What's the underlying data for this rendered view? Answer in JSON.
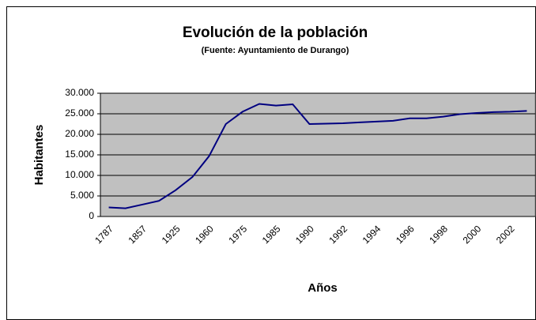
{
  "chart_data": {
    "type": "line",
    "title": "Evolución de la población",
    "subtitle": "(Fuente: Ayuntamiento de Durango)",
    "y_label": "Habitantes",
    "x_label": "Años",
    "categories": [
      "1787",
      null,
      "1857",
      null,
      "1925",
      null,
      "1960",
      null,
      "1975",
      null,
      "1985",
      null,
      "1990",
      null,
      "1992",
      null,
      "1994",
      null,
      "1996",
      null,
      "1998",
      null,
      "2000",
      null,
      "2002",
      null
    ],
    "series": [
      {
        "name": "Habitantes",
        "color": "#000080",
        "values": [
          2200,
          2000,
          2900,
          3800,
          6400,
          9600,
          14700,
          22500,
          25500,
          27400,
          27000,
          27300,
          22500,
          22600,
          22700,
          22900,
          23100,
          23300,
          23900,
          23900,
          24300,
          24900,
          25200,
          25400,
          25500,
          25700
        ]
      }
    ],
    "ylim": [
      0,
      30000
    ],
    "yticks": [
      0,
      {
        "value": 5000,
        "label": "5.000"
      },
      {
        "value": 10000,
        "label": "10.000"
      },
      {
        "value": 15000,
        "label": "15.000"
      },
      {
        "value": 20000,
        "label": "20.000"
      },
      {
        "value": 25000,
        "label": "25.000"
      },
      {
        "value": 30000,
        "label": "30.000"
      }
    ],
    "grid": true,
    "plot_background": "#c0c0c0"
  }
}
